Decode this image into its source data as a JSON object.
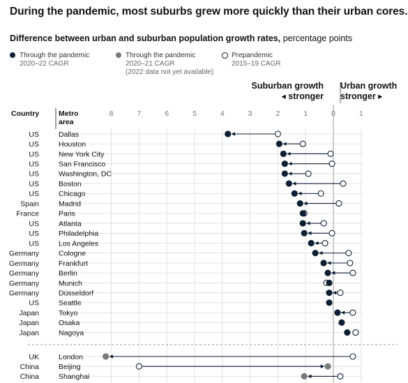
{
  "title": "During the pandemic, most suburbs grew more quickly than their urban cores.",
  "subtitle_bold": "Difference between urban and suburban population growth rates,",
  "subtitle_rest": " percentage points",
  "legend": [
    {
      "name": "Through the pandemic",
      "sub1": "2020–22 CAGR",
      "sub2": "",
      "color": "#0d1f33",
      "filled": true
    },
    {
      "name": "Through the pandemic",
      "sub1": "2020–21 CAGR",
      "sub2": "(2022 data not yet available)",
      "color": "#7a7a7a",
      "filled": true
    },
    {
      "name": "Prepandemic",
      "sub1": "2015–19 CAGR",
      "sub2": "",
      "color": "#0d1f33",
      "filled": false
    }
  ],
  "direction_left": [
    "Suburban growth",
    "◂ stronger"
  ],
  "direction_right": [
    "Urban growth",
    "stronger ▸"
  ],
  "col_country": "Country",
  "col_metro": [
    "Metro",
    "area"
  ],
  "colors": {
    "pandemic_22": "#0d1f33",
    "pandemic_21": "#7a7a7a",
    "grid": "#d9d9d9",
    "zero": "#9a9a9a"
  },
  "chart_data": {
    "type": "dot-arrow",
    "xlim": [
      -1,
      8
    ],
    "x_direction": "reversed",
    "x_ticks": [
      "8",
      "7",
      "6",
      "5",
      "4",
      "3",
      "2",
      "1",
      "0",
      "1"
    ],
    "x_tick_values": [
      8,
      7,
      6,
      5,
      4,
      3,
      2,
      1,
      0,
      -1
    ],
    "rows": [
      {
        "country": "US",
        "metro": "Dallas",
        "pre": 2.0,
        "pan": 3.8,
        "period": "2020–22"
      },
      {
        "country": "US",
        "metro": "Houston",
        "pre": 1.1,
        "pan": 1.95,
        "period": "2020–22"
      },
      {
        "country": "US",
        "metro": "New York City",
        "pre": 0.1,
        "pan": 1.8,
        "period": "2020–22"
      },
      {
        "country": "US",
        "metro": "San Francisco",
        "pre": 0.05,
        "pan": 1.75,
        "period": "2020–22"
      },
      {
        "country": "US",
        "metro": "Washington, DC",
        "pre": 0.9,
        "pan": 1.75,
        "period": "2020–22"
      },
      {
        "country": "US",
        "metro": "Boston",
        "pre": -0.35,
        "pan": 1.6,
        "period": "2020–22"
      },
      {
        "country": "US",
        "metro": "Chicago",
        "pre": 0.45,
        "pan": 1.4,
        "period": "2020–22"
      },
      {
        "country": "Spain",
        "metro": "Madrid",
        "pre": -0.2,
        "pan": 1.2,
        "period": "2020–22"
      },
      {
        "country": "France",
        "metro": "Paris",
        "pre": 1.05,
        "pan": 1.1,
        "period": "2020–22"
      },
      {
        "country": "US",
        "metro": "Atlanta",
        "pre": 0.35,
        "pan": 1.1,
        "period": "2020–22"
      },
      {
        "country": "US",
        "metro": "Philadelphia",
        "pre": 0.05,
        "pan": 1.05,
        "period": "2020–22"
      },
      {
        "country": "US",
        "metro": "Los Angeles",
        "pre": 0.3,
        "pan": 0.8,
        "period": "2020–22"
      },
      {
        "country": "Germany",
        "metro": "Cologne",
        "pre": -0.55,
        "pan": 0.65,
        "period": "2020–22"
      },
      {
        "country": "Germany",
        "metro": "Frankfurt",
        "pre": -0.6,
        "pan": 0.35,
        "period": "2020–22"
      },
      {
        "country": "Germany",
        "metro": "Berlin",
        "pre": -0.7,
        "pan": 0.2,
        "period": "2020–22"
      },
      {
        "country": "Germany",
        "metro": "Munich",
        "pre": 0.25,
        "pan": 0.15,
        "period": "2020–22"
      },
      {
        "country": "Germany",
        "metro": "Düsseldorf",
        "pre": -0.25,
        "pan": 0.15,
        "period": "2020–22"
      },
      {
        "country": "US",
        "metro": "Seattle",
        "pre": null,
        "pan": 0.15,
        "period": "2020–22"
      },
      {
        "country": "Japan",
        "metro": "Tokyo",
        "pre": -0.7,
        "pan": -0.15,
        "period": "2020–22"
      },
      {
        "country": "Japan",
        "metro": "Osaka",
        "pre": null,
        "pan": -0.3,
        "period": "2020–22"
      },
      {
        "country": "Japan",
        "metro": "Nagoya",
        "pre": -0.8,
        "pan": -0.5,
        "period": "2020–22"
      },
      {
        "country": "UK",
        "metro": "London",
        "pre": -0.7,
        "pan": 8.2,
        "period": "2020–21"
      },
      {
        "country": "China",
        "metro": "Beijing",
        "pre": 7.0,
        "pan": 0.2,
        "period": "2020–21"
      },
      {
        "country": "China",
        "metro": "Shanghai",
        "pre": -0.25,
        "pan": 1.05,
        "period": "2020–21"
      }
    ]
  }
}
